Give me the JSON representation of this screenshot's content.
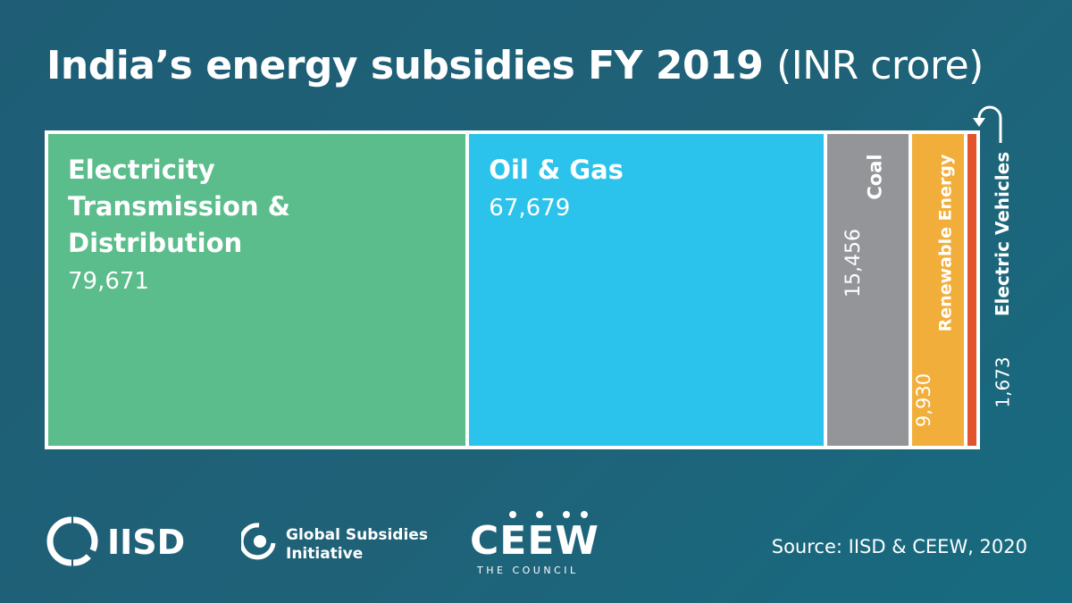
{
  "title": {
    "main": "India’s energy subsidies FY 2019",
    "unit": "(INR crore)"
  },
  "chart_data": {
    "type": "treemap",
    "title": "India’s energy subsidies FY 2019 (INR crore)",
    "unit": "INR crore",
    "categories": [
      "Electricity Transmission & Distribution",
      "Oil & Gas",
      "Coal",
      "Renewable Energy",
      "Electric Vehicles"
    ],
    "values": [
      79671,
      67679,
      15456,
      9930,
      1673
    ],
    "value_labels": [
      "79,671",
      "67,679",
      "15,456",
      "9,930",
      "1,673"
    ],
    "colors": [
      "#5bbd8b",
      "#2bc3eb",
      "#939598",
      "#f2ae3a",
      "#e2542b"
    ],
    "label_lines": {
      "electricity": [
        "Electricity",
        "Transmission &",
        "Distribution"
      ]
    }
  },
  "logos": {
    "iisd": "IISD",
    "gsi_line1": "Global Subsidies",
    "gsi_line2": "Initiative",
    "ceew": "CEEW",
    "ceew_sub": "THE COUNCIL"
  },
  "source": "Source: IISD & CEEW, 2020"
}
